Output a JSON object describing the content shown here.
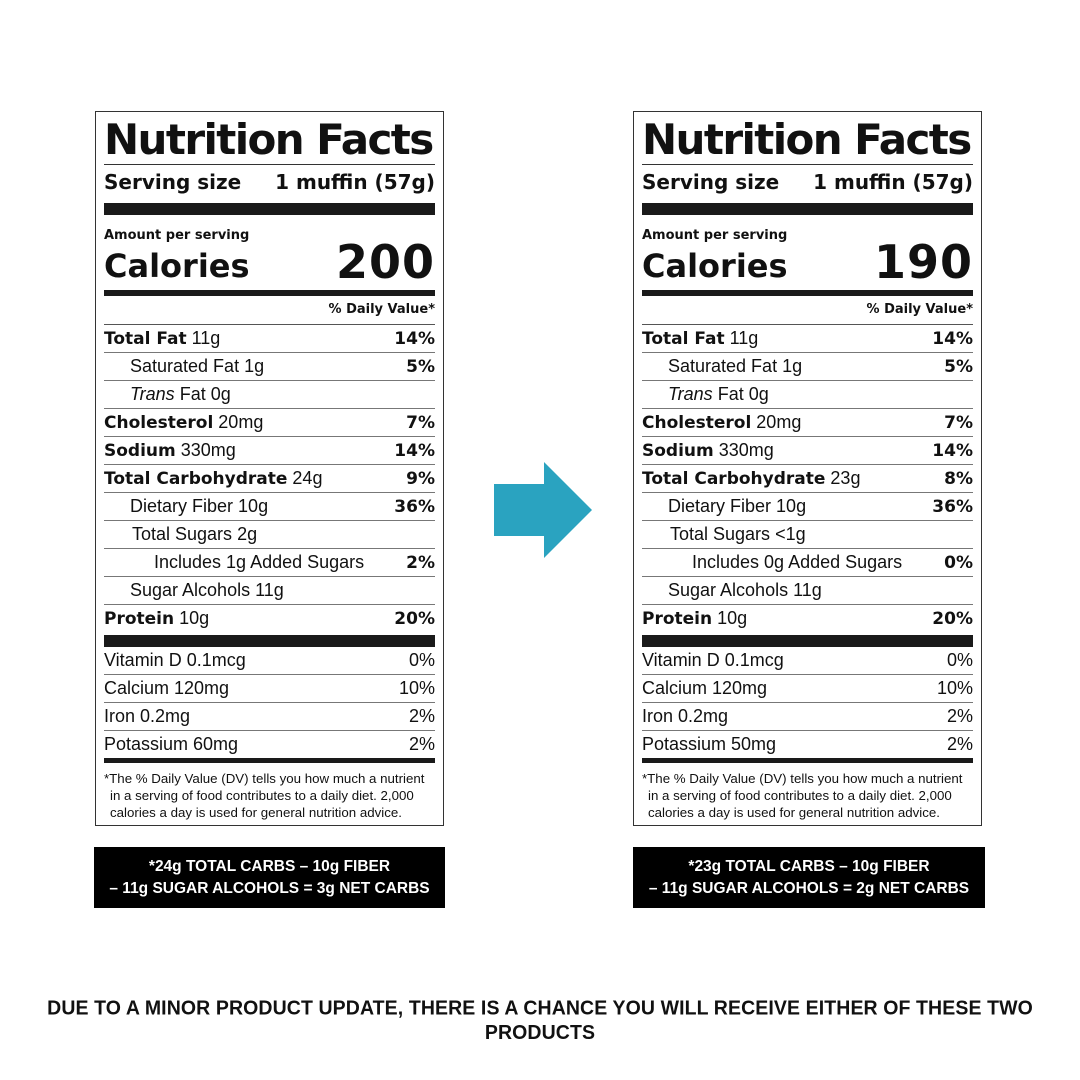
{
  "labels": [
    {
      "title": "Nutrition Facts",
      "serving_label": "Serving size",
      "serving_value": "1 muffin (57g)",
      "amount_per_serving": "Amount per serving",
      "calories_label": "Calories",
      "calories_value": "200",
      "dv_header": "% Daily Value*",
      "nutrients": [
        {
          "name": "Total Fat",
          "amount": "11g",
          "dv": "14%"
        },
        {
          "name": "Saturated Fat",
          "amount": "1g",
          "dv": "5%"
        },
        {
          "name": "Trans",
          "amount": "Fat 0g",
          "dv": ""
        },
        {
          "name": "Cholesterol",
          "amount": "20mg",
          "dv": "7%"
        },
        {
          "name": "Sodium",
          "amount": "330mg",
          "dv": "14%"
        },
        {
          "name": "Total Carbohydrate",
          "amount": "24g",
          "dv": "9%"
        },
        {
          "name": "Dietary Fiber",
          "amount": "10g",
          "dv": "36%"
        },
        {
          "name": "Total Sugars",
          "amount": "2g",
          "dv": ""
        },
        {
          "name": "Includes 1g Added Sugars",
          "amount": "",
          "dv": "2%"
        },
        {
          "name": "Sugar Alcohols",
          "amount": "11g",
          "dv": ""
        },
        {
          "name": "Protein",
          "amount": "10g",
          "dv": "20%"
        }
      ],
      "vitamins": [
        {
          "name": "Vitamin D 0.1mcg",
          "dv": "0%"
        },
        {
          "name": "Calcium 120mg",
          "dv": "10%"
        },
        {
          "name": "Iron 0.2mg",
          "dv": "2%"
        },
        {
          "name": "Potassium 60mg",
          "dv": "2%"
        }
      ],
      "footnote": "*The % Daily Value (DV) tells you how much a nutrient in a serving of food contributes to a daily diet. 2,000 calories a day is used for general nutrition advice.",
      "net_carbs_line1": "*24g TOTAL CARBS – 10g FIBER",
      "net_carbs_line2": "– 11g SUGAR ALCOHOLS = 3g NET CARBS"
    },
    {
      "title": "Nutrition Facts",
      "serving_label": "Serving size",
      "serving_value": "1 muffin (57g)",
      "amount_per_serving": "Amount per serving",
      "calories_label": "Calories",
      "calories_value": "190",
      "dv_header": "% Daily Value*",
      "nutrients": [
        {
          "name": "Total Fat",
          "amount": "11g",
          "dv": "14%"
        },
        {
          "name": "Saturated Fat",
          "amount": "1g",
          "dv": "5%"
        },
        {
          "name": "Trans",
          "amount": "Fat 0g",
          "dv": ""
        },
        {
          "name": "Cholesterol",
          "amount": "20mg",
          "dv": "7%"
        },
        {
          "name": "Sodium",
          "amount": "330mg",
          "dv": "14%"
        },
        {
          "name": "Total Carbohydrate",
          "amount": "23g",
          "dv": "8%"
        },
        {
          "name": "Dietary Fiber",
          "amount": "10g",
          "dv": "36%"
        },
        {
          "name": "Total Sugars",
          "amount": "<1g",
          "dv": ""
        },
        {
          "name": "Includes 0g Added Sugars",
          "amount": "",
          "dv": "0%"
        },
        {
          "name": "Sugar Alcohols",
          "amount": "11g",
          "dv": ""
        },
        {
          "name": "Protein",
          "amount": "10g",
          "dv": "20%"
        }
      ],
      "vitamins": [
        {
          "name": "Vitamin D 0.1mcg",
          "dv": "0%"
        },
        {
          "name": "Calcium 120mg",
          "dv": "10%"
        },
        {
          "name": "Iron 0.2mg",
          "dv": "2%"
        },
        {
          "name": "Potassium 50mg",
          "dv": "2%"
        }
      ],
      "footnote": "*The % Daily Value (DV) tells you how much a nutrient in a serving of food contributes to a daily diet. 2,000 calories a day is used for general nutrition advice.",
      "net_carbs_line1": "*23g TOTAL CARBS – 10g FIBER",
      "net_carbs_line2": "– 11g SUGAR ALCOHOLS = 2g NET CARBS"
    }
  ],
  "arrow": {
    "icon": "right-arrow-icon",
    "color": "#2aa3c0"
  },
  "bottom_note": "DUE TO A MINOR PRODUCT UPDATE, THERE IS A CHANCE YOU WILL RECEIVE EITHER OF THESE TWO PRODUCTS"
}
